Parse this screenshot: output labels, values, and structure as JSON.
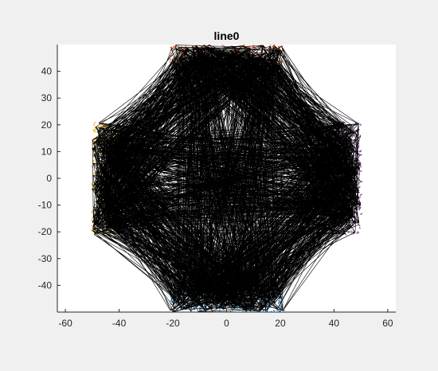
{
  "chart_data": {
    "type": "line",
    "title": "line0",
    "xlabel": "",
    "ylabel": "",
    "xlim": [
      -63,
      63
    ],
    "ylim": [
      -50,
      50
    ],
    "xticks": [
      -60,
      -40,
      -20,
      0,
      20,
      40,
      60
    ],
    "yticks": [
      -40,
      -30,
      -20,
      -10,
      0,
      10,
      20,
      30,
      40
    ],
    "xtick_labels": [
      "-60",
      "-40",
      "-20",
      "0",
      "20",
      "40",
      "60"
    ],
    "ytick_labels": [
      "-40",
      "-30",
      "-20",
      "-10",
      "0",
      "10",
      "20",
      "30",
      "40"
    ],
    "grid": false,
    "line_color": "#000000",
    "regions": [
      {
        "color": "#d95319",
        "x": [
          -21,
          -1
        ],
        "y": [
          40,
          50
        ]
      },
      {
        "color": "#d95319",
        "x": [
          1,
          21
        ],
        "y": [
          40,
          50
        ]
      },
      {
        "color": "#0072bd",
        "x": [
          -21,
          -1
        ],
        "y": [
          -50,
          -40
        ]
      },
      {
        "color": "#0072bd",
        "x": [
          1,
          21
        ],
        "y": [
          -50,
          -40
        ]
      },
      {
        "color": "#edb120",
        "x": [
          -50,
          -40
        ],
        "y": [
          1,
          21
        ]
      },
      {
        "color": "#edb120",
        "x": [
          -50,
          -40
        ],
        "y": [
          -21,
          -1
        ]
      },
      {
        "color": "#7e2f8e",
        "x": [
          40,
          50
        ],
        "y": [
          1,
          21
        ]
      },
      {
        "color": "#7e2f8e",
        "x": [
          40,
          50
        ],
        "y": [
          -21,
          -1
        ]
      }
    ]
  }
}
